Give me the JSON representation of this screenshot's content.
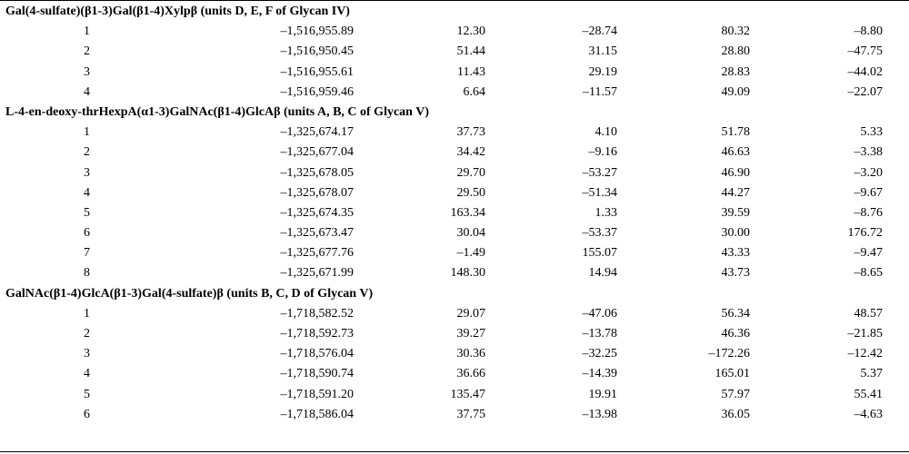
{
  "groups": [
    {
      "title": "Gal(4-sulfate)(β1-3)Gal(β1-4)Xylpβ (units D, E, F of Glycan IV)",
      "rows": [
        [
          "1",
          "–1,516,955.89",
          "12.30",
          "–28.74",
          "80.32",
          "–8.80"
        ],
        [
          "2",
          "–1,516,950.45",
          "51.44",
          "31.15",
          "28.80",
          "–47.75"
        ],
        [
          "3",
          "–1,516,955.61",
          "11.43",
          "29.19",
          "28.83",
          "–44.02"
        ],
        [
          "4",
          "–1,516,959.46",
          "6.64",
          "–11.57",
          "49.09",
          "–22.07"
        ]
      ]
    },
    {
      "title": "L-4-en-deoxy-thrHexpA(α1-3)GalNAc(β1-4)GlcAβ (units A, B, C of Glycan V)",
      "rows": [
        [
          "1",
          "–1,325,674.17",
          "37.73",
          "4.10",
          "51.78",
          "5.33"
        ],
        [
          "2",
          "–1,325,677.04",
          "34.42",
          "–9.16",
          "46.63",
          "–3.38"
        ],
        [
          "3",
          "–1,325,678.05",
          "29.70",
          "–53.27",
          "46.90",
          "–3.20"
        ],
        [
          "4",
          "–1,325,678.07",
          "29.50",
          "–51.34",
          "44.27",
          "–9.67"
        ],
        [
          "5",
          "–1,325,674.35",
          "163.34",
          "1.33",
          "39.59",
          "–8.76"
        ],
        [
          "6",
          "–1,325,673.47",
          "30.04",
          "–53.37",
          "30.00",
          "176.72"
        ],
        [
          "7",
          "–1,325,677.76",
          "–1.49",
          "155.07",
          "43.33",
          "–9.47"
        ],
        [
          "8",
          "–1,325,671.99",
          "148.30",
          "14.94",
          "43.73",
          "–8.65"
        ]
      ]
    },
    {
      "title": "GalNAc(β1-4)GlcA(β1-3)Gal(4-sulfate)β (units B, C, D of Glycan V)",
      "rows": [
        [
          "1",
          "–1,718,582.52",
          "29.07",
          "–47.06",
          "56.34",
          "48.57"
        ],
        [
          "2",
          "–1,718,592.73",
          "39.27",
          "–13.78",
          "46.36",
          "–21.85"
        ],
        [
          "3",
          "–1,718,576.04",
          "30.36",
          "–32.25",
          "–172.26",
          "–12.42"
        ],
        [
          "4",
          "–1,718,590.74",
          "36.66",
          "–14.39",
          "165.01",
          "5.37"
        ],
        [
          "5",
          "–1,718,591.20",
          "135.47",
          "19.91",
          "57.97",
          "55.41"
        ],
        [
          "6",
          "–1,718,586.04",
          "37.75",
          "–13.98",
          "36.05",
          "–4.63"
        ]
      ]
    }
  ]
}
